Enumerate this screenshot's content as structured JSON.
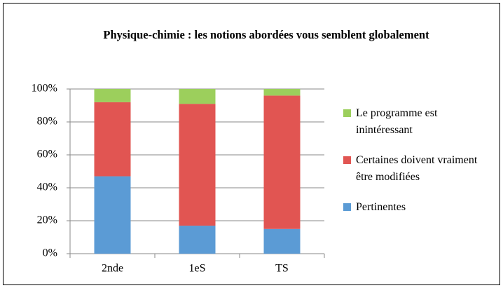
{
  "chart_data": {
    "type": "stacked_bar",
    "title": "Physique-chimie : les notions abordées vous semblent globalement",
    "categories": [
      "2nde",
      "1eS",
      "TS"
    ],
    "series": [
      {
        "name": "Pertinentes",
        "color": "#5b9bd5",
        "values": [
          47,
          17,
          15
        ]
      },
      {
        "name": "Certaines doivent vraiment être modifiées",
        "color": "#e15552",
        "values": [
          45,
          74,
          81
        ]
      },
      {
        "name": "Le programme est inintéressant",
        "color": "#9ccf5c",
        "values": [
          8,
          9,
          4
        ]
      }
    ],
    "ylim": [
      0,
      100
    ],
    "yticks": [
      {
        "value": 0,
        "label": "0%"
      },
      {
        "value": 20,
        "label": "20%"
      },
      {
        "value": 40,
        "label": "40%"
      },
      {
        "value": 60,
        "label": "60%"
      },
      {
        "value": 80,
        "label": "80%"
      },
      {
        "value": 100,
        "label": "100%"
      }
    ],
    "grid": true,
    "legend": "right"
  }
}
